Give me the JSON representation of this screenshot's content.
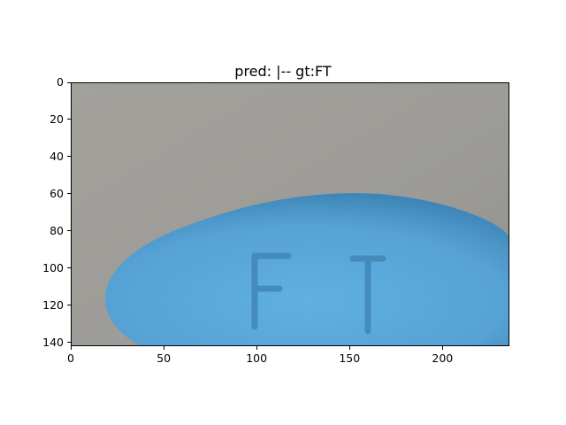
{
  "figure": {
    "title": "pred: |-- gt:FT",
    "image": {
      "subject": "blue oval tablet with debossed letters",
      "imprint_text": "FT",
      "colors": {
        "background": "#9c9b97",
        "tablet": "#5aa6d6",
        "tablet_shadow": "#3f86b8"
      }
    },
    "x_axis": {
      "ticks": [
        "0",
        "50",
        "100",
        "150",
        "200"
      ],
      "tick_values": [
        0,
        50,
        100,
        150,
        200
      ],
      "range": [
        0,
        236
      ]
    },
    "y_axis": {
      "ticks": [
        "0",
        "20",
        "40",
        "60",
        "80",
        "100",
        "120",
        "140"
      ],
      "tick_values": [
        0,
        20,
        40,
        60,
        80,
        100,
        120,
        140
      ],
      "range": [
        0,
        142
      ],
      "inverted": true
    }
  }
}
